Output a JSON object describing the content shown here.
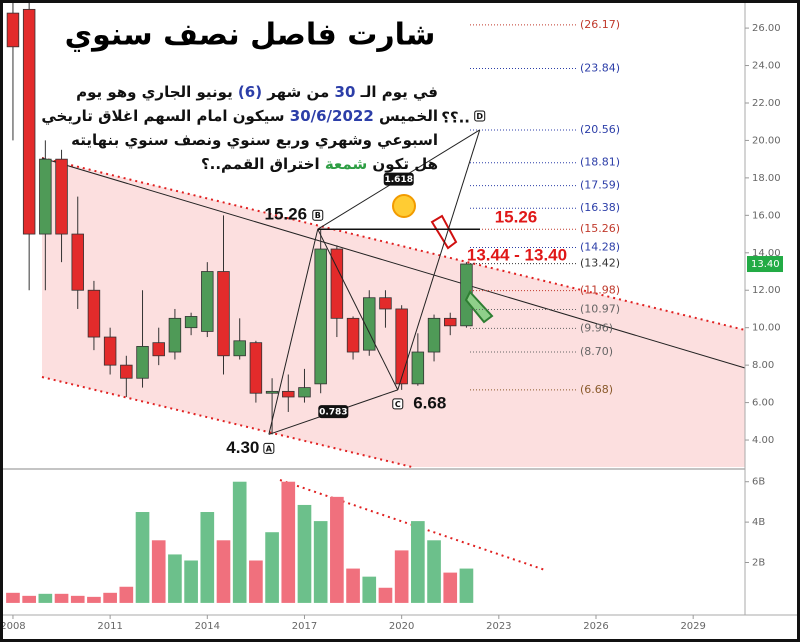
{
  "chart_data": [
    {
      "type": "candlestick",
      "title": "شارت فاصل نصف سنوي",
      "x": [
        2008,
        2008.5,
        2009,
        2009.5,
        2010,
        2010.5,
        2011,
        2011.5,
        2012,
        2012.5,
        2013,
        2013.5,
        2014,
        2014.5,
        2015,
        2015.5,
        2016,
        2016.5,
        2017,
        2017.5,
        2018,
        2018.5,
        2019,
        2019.5,
        2020,
        2020.5,
        2021,
        2021.5,
        2022
      ],
      "open": [
        26.8,
        27,
        15,
        19,
        15,
        12,
        9.5,
        8,
        7.3,
        9.2,
        8.7,
        10,
        9.8,
        13,
        8.5,
        9.2,
        6.5,
        6.6,
        6.3,
        7,
        14.2,
        10.5,
        8.8,
        11.6,
        11,
        7,
        8.7,
        10.5,
        10.1
      ],
      "high": [
        27.5,
        27.5,
        20,
        19.5,
        17,
        12.5,
        10,
        8.5,
        12,
        10,
        11,
        10.8,
        13.5,
        16,
        10.5,
        9.3,
        7.3,
        7.5,
        7.8,
        15.26,
        14.4,
        10.6,
        12,
        12,
        11.2,
        9.7,
        10.7,
        10.8,
        13.5
      ],
      "low": [
        20,
        12,
        12,
        13.5,
        11,
        8.8,
        7.5,
        6.3,
        6.8,
        8,
        8.3,
        9.6,
        9.5,
        7.5,
        8.3,
        6,
        4.3,
        5.5,
        6,
        6.5,
        9.5,
        8.3,
        8.5,
        10,
        6.68,
        6.9,
        8.2,
        9.6,
        10
      ],
      "close": [
        25,
        15,
        19,
        15,
        12,
        9.5,
        8,
        7.3,
        9,
        8.5,
        10.5,
        10.6,
        13,
        8.5,
        9.3,
        6.5,
        6.6,
        6.3,
        6.8,
        14.2,
        10.5,
        8.7,
        11.6,
        11,
        7,
        8.7,
        10.5,
        10.1,
        13.4
      ],
      "up_color": "#4f9a57",
      "down_color": "#e32b2b",
      "xlim": [
        2007.6,
        2030.6
      ],
      "xticks": [
        2008,
        2011,
        2014,
        2017,
        2020,
        2023,
        2026,
        2029
      ],
      "ylim": [
        2.56,
        27.5
      ],
      "yticks": [
        {
          "value": 4,
          "label": "4.00"
        },
        {
          "value": 6,
          "label": "6.00"
        },
        {
          "value": 8,
          "label": "8.00"
        },
        {
          "value": 10,
          "label": "10.00"
        },
        {
          "value": 12,
          "label": "12.00"
        },
        {
          "value": 14,
          "label": "14.00"
        },
        {
          "value": 16,
          "label": "16.00"
        },
        {
          "value": 18,
          "label": "18.00"
        },
        {
          "value": 20,
          "label": "20.00"
        },
        {
          "value": 22,
          "label": "22.00"
        },
        {
          "value": 24,
          "label": "24.00"
        },
        {
          "value": 26,
          "label": "26.00"
        }
      ],
      "last_price": {
        "value": 13.4,
        "label": "13.40",
        "color": "#22ab45"
      },
      "fib_levels": [
        {
          "value": 26.17,
          "label": "(26.17)",
          "color": "#c0392b"
        },
        {
          "value": 23.84,
          "label": "(23.84)",
          "color": "#2c3ea8"
        },
        {
          "value": 20.56,
          "label": "(20.56)",
          "color": "#2c3ea8"
        },
        {
          "value": 18.81,
          "label": "(18.81)",
          "color": "#2c3ea8"
        },
        {
          "value": 17.59,
          "label": "(17.59)",
          "color": "#2c3ea8"
        },
        {
          "value": 16.38,
          "label": "(16.38)",
          "color": "#2c3ea8"
        },
        {
          "value": 15.26,
          "label": "(15.26)",
          "color": "#c0392b"
        },
        {
          "value": 14.28,
          "label": "(14.28)",
          "color": "#2c3ea8"
        },
        {
          "value": 13.42,
          "label": "(13.42)",
          "color": "#333333"
        },
        {
          "value": 11.98,
          "label": "(11.98)",
          "color": "#c0392b"
        },
        {
          "value": 10.97,
          "label": "(10.97)",
          "color": "#666666"
        },
        {
          "value": 9.96,
          "label": "(9.96)",
          "color": "#666666"
        },
        {
          "value": 8.7,
          "label": "(8.70)",
          "color": "#666666"
        },
        {
          "value": 6.68,
          "label": "(6.68)",
          "color": "#8a5a2b"
        }
      ],
      "pattern": [
        {
          "name": "A",
          "x": 2015.9,
          "y": 4.3,
          "label": "4.30"
        },
        {
          "name": "B",
          "x": 2017.41,
          "y": 15.26,
          "label": "15.26"
        },
        {
          "name": "C",
          "x": 2019.88,
          "y": 6.68,
          "label": "6.68"
        },
        {
          "name": "D",
          "x": 2022.41,
          "y": 20.56
        }
      ],
      "ratios": [
        1.618,
        0.783
      ],
      "target": {
        "value": 15.26,
        "text": "13.44 - 13.40"
      },
      "question": "؟؟..",
      "note_lines": [
        [
          {
            "text": "في يوم الـ "
          },
          {
            "text": "30",
            "color": "#2c3ea8"
          },
          {
            "text": " من شهر "
          },
          {
            "text": "(6)",
            "color": "#2c3ea8"
          },
          {
            "text": " يونيو الجاري وهو يوم"
          }
        ],
        [
          {
            "text": "الخميس "
          },
          {
            "text": "30/6/2022",
            "color": "#2c3ea8"
          },
          {
            "text": " سيكون امام السهم اغلاق تاريخي"
          }
        ],
        [
          {
            "text": "اسبوعي وشهري وربع سنوي ونصف سنوي بنهايته"
          }
        ],
        [
          {
            "text": "هل تكون "
          },
          {
            "text": "شمعة",
            "color": "#2e9e44"
          },
          {
            "text": " اختراق القمم..؟"
          }
        ]
      ]
    },
    {
      "type": "bar",
      "values": [
        0.5,
        0.35,
        0.45,
        0.45,
        0.35,
        0.3,
        0.5,
        0.8,
        4.5,
        3.1,
        2.4,
        2.1,
        4.5,
        3.1,
        6,
        2.1,
        3.5,
        6,
        4.85,
        4.05,
        5.25,
        1.7,
        1.3,
        0.75,
        2.6,
        4.05,
        3.1,
        1.5,
        1.7
      ],
      "up_color": "#6cc08b",
      "down_color": "#f0707d",
      "ylim": [
        -0.45,
        6.58
      ],
      "yticks": [
        {
          "value": 2,
          "label": "2B"
        },
        {
          "value": 4,
          "label": "4B"
        },
        {
          "value": 6,
          "label": "6B"
        }
      ]
    }
  ]
}
